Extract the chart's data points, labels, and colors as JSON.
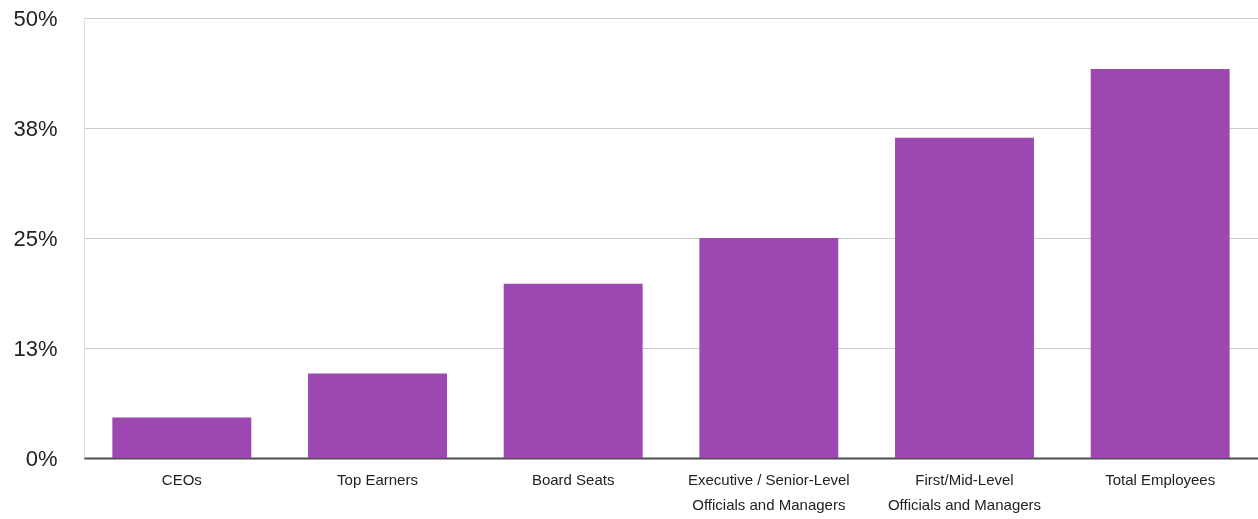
{
  "chart_data": {
    "type": "bar",
    "categories": [
      "CEOs",
      "Top Earners",
      "Board Seats",
      "Executive / Senior-Level Officials and Managers",
      "First/Mid-Level Officials and Managers",
      "Total Employees"
    ],
    "values": [
      4.6,
      9.6,
      19.8,
      25,
      36.4,
      44.2
    ],
    "color": "#9c48b0",
    "ylim": [
      0,
      50
    ],
    "yticks": [
      {
        "value": 0,
        "label": "0%"
      },
      {
        "value": 12.5,
        "label": "13%"
      },
      {
        "value": 25,
        "label": "25%"
      },
      {
        "value": 37.5,
        "label": "38%"
      },
      {
        "value": 50,
        "label": "50%"
      }
    ],
    "grid": "y"
  }
}
